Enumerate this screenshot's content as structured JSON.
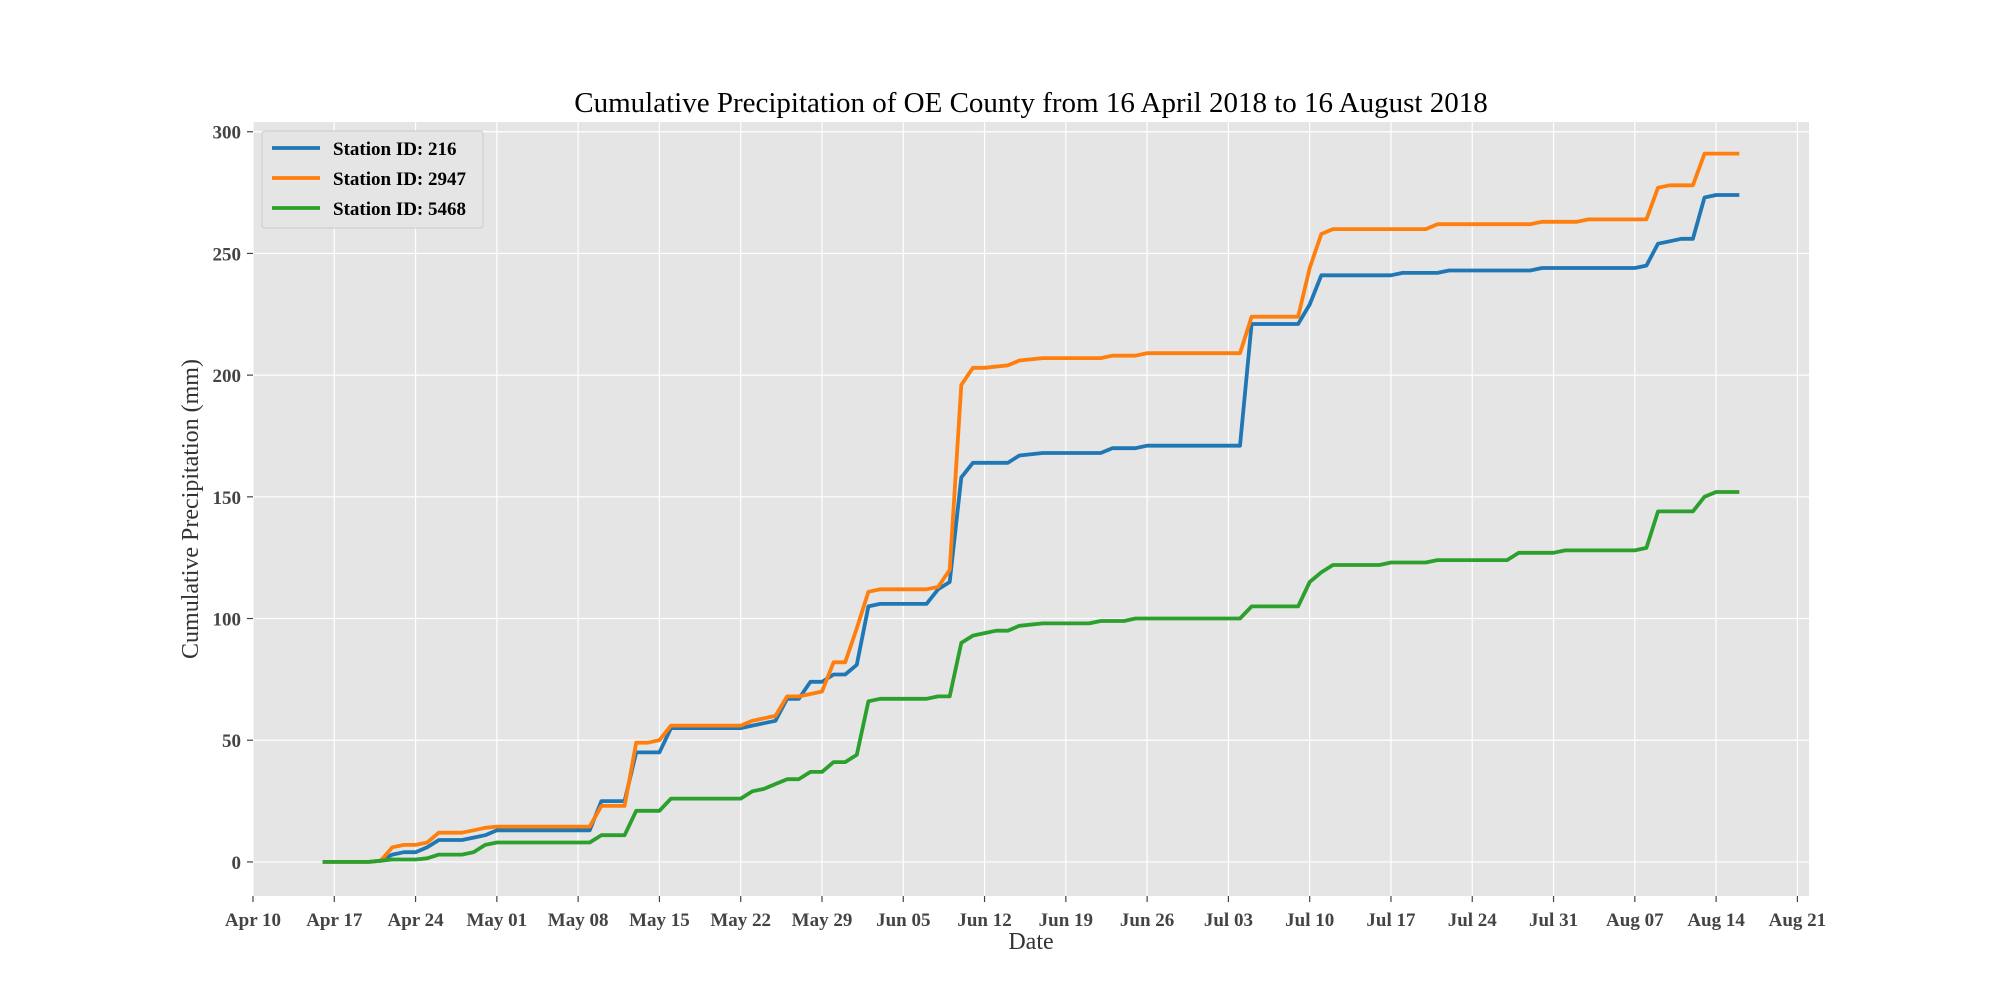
{
  "chart_data": {
    "type": "line",
    "title": "Cumulative Precipitation of OE County from 16 April 2018 to 16 August 2018",
    "xlabel": "Date",
    "ylabel": "Cumulative Precipitation (mm)",
    "xlim": [
      "2018-04-10",
      "2018-08-22"
    ],
    "ylim": [
      -14,
      304
    ],
    "x_ticks": [
      {
        "date": "2018-04-10",
        "label": "Apr 10"
      },
      {
        "date": "2018-04-17",
        "label": "Apr 17"
      },
      {
        "date": "2018-04-24",
        "label": "Apr 24"
      },
      {
        "date": "2018-05-01",
        "label": "May 01"
      },
      {
        "date": "2018-05-08",
        "label": "May 08"
      },
      {
        "date": "2018-05-15",
        "label": "May 15"
      },
      {
        "date": "2018-05-22",
        "label": "May 22"
      },
      {
        "date": "2018-05-29",
        "label": "May 29"
      },
      {
        "date": "2018-06-05",
        "label": "Jun 05"
      },
      {
        "date": "2018-06-12",
        "label": "Jun 12"
      },
      {
        "date": "2018-06-19",
        "label": "Jun 19"
      },
      {
        "date": "2018-06-26",
        "label": "Jun 26"
      },
      {
        "date": "2018-07-03",
        "label": "Jul 03"
      },
      {
        "date": "2018-07-10",
        "label": "Jul 10"
      },
      {
        "date": "2018-07-17",
        "label": "Jul 17"
      },
      {
        "date": "2018-07-24",
        "label": "Jul 24"
      },
      {
        "date": "2018-07-31",
        "label": "Jul 31"
      },
      {
        "date": "2018-08-07",
        "label": "Aug 07"
      },
      {
        "date": "2018-08-14",
        "label": "Aug 14"
      },
      {
        "date": "2018-08-21",
        "label": "Aug 21"
      }
    ],
    "y_ticks": [
      0,
      50,
      100,
      150,
      200,
      250,
      300
    ],
    "grid": true,
    "legend_position": "top-left",
    "series": [
      {
        "name": "Station ID: 216",
        "color": "#1f77b4",
        "points": [
          [
            "2018-04-16",
            0
          ],
          [
            "2018-04-20",
            0
          ],
          [
            "2018-04-21",
            0.5
          ],
          [
            "2018-04-22",
            3
          ],
          [
            "2018-04-23",
            4
          ],
          [
            "2018-04-24",
            4
          ],
          [
            "2018-04-25",
            6
          ],
          [
            "2018-04-26",
            9
          ],
          [
            "2018-04-27",
            9
          ],
          [
            "2018-04-28",
            9
          ],
          [
            "2018-04-29",
            10
          ],
          [
            "2018-04-30",
            11
          ],
          [
            "2018-05-01",
            13
          ],
          [
            "2018-05-09",
            13
          ],
          [
            "2018-05-10",
            25
          ],
          [
            "2018-05-12",
            25
          ],
          [
            "2018-05-13",
            45
          ],
          [
            "2018-05-14",
            45
          ],
          [
            "2018-05-15",
            45
          ],
          [
            "2018-05-16",
            55
          ],
          [
            "2018-05-22",
            55
          ],
          [
            "2018-05-23",
            56
          ],
          [
            "2018-05-24",
            57
          ],
          [
            "2018-05-25",
            58
          ],
          [
            "2018-05-26",
            67
          ],
          [
            "2018-05-27",
            67
          ],
          [
            "2018-05-28",
            74
          ],
          [
            "2018-05-29",
            74
          ],
          [
            "2018-05-30",
            77
          ],
          [
            "2018-05-31",
            77
          ],
          [
            "2018-06-01",
            81
          ],
          [
            "2018-06-02",
            105
          ],
          [
            "2018-06-03",
            106
          ],
          [
            "2018-06-07",
            106
          ],
          [
            "2018-06-08",
            112
          ],
          [
            "2018-06-09",
            115
          ],
          [
            "2018-06-10",
            158
          ],
          [
            "2018-06-11",
            164
          ],
          [
            "2018-06-12",
            164
          ],
          [
            "2018-06-14",
            164
          ],
          [
            "2018-06-15",
            167
          ],
          [
            "2018-06-17",
            168
          ],
          [
            "2018-06-22",
            168
          ],
          [
            "2018-06-23",
            170
          ],
          [
            "2018-06-25",
            170
          ],
          [
            "2018-06-26",
            171
          ],
          [
            "2018-07-04",
            171
          ],
          [
            "2018-07-05",
            221
          ],
          [
            "2018-07-09",
            221
          ],
          [
            "2018-07-10",
            229
          ],
          [
            "2018-07-11",
            241
          ],
          [
            "2018-07-12",
            241
          ],
          [
            "2018-07-17",
            241
          ],
          [
            "2018-07-18",
            242
          ],
          [
            "2018-07-21",
            242
          ],
          [
            "2018-07-22",
            243
          ],
          [
            "2018-07-29",
            243
          ],
          [
            "2018-07-30",
            244
          ],
          [
            "2018-08-07",
            244
          ],
          [
            "2018-08-08",
            245
          ],
          [
            "2018-08-09",
            254
          ],
          [
            "2018-08-10",
            255
          ],
          [
            "2018-08-11",
            256
          ],
          [
            "2018-08-12",
            256
          ],
          [
            "2018-08-13",
            273
          ],
          [
            "2018-08-14",
            274
          ],
          [
            "2018-08-16",
            274
          ]
        ]
      },
      {
        "name": "Station ID: 2947",
        "color": "#ff7f0e",
        "points": [
          [
            "2018-04-16",
            0
          ],
          [
            "2018-04-20",
            0
          ],
          [
            "2018-04-21",
            0.5
          ],
          [
            "2018-04-22",
            6
          ],
          [
            "2018-04-23",
            7
          ],
          [
            "2018-04-24",
            7
          ],
          [
            "2018-04-25",
            8
          ],
          [
            "2018-04-26",
            12
          ],
          [
            "2018-04-27",
            12
          ],
          [
            "2018-04-28",
            12
          ],
          [
            "2018-04-29",
            13
          ],
          [
            "2018-04-30",
            14
          ],
          [
            "2018-05-01",
            14.5
          ],
          [
            "2018-05-09",
            14.5
          ],
          [
            "2018-05-10",
            23
          ],
          [
            "2018-05-12",
            23
          ],
          [
            "2018-05-13",
            49
          ],
          [
            "2018-05-14",
            49
          ],
          [
            "2018-05-15",
            50
          ],
          [
            "2018-05-16",
            56
          ],
          [
            "2018-05-22",
            56
          ],
          [
            "2018-05-23",
            58
          ],
          [
            "2018-05-24",
            59
          ],
          [
            "2018-05-25",
            60
          ],
          [
            "2018-05-26",
            68
          ],
          [
            "2018-05-27",
            68
          ],
          [
            "2018-05-28",
            69
          ],
          [
            "2018-05-29",
            70
          ],
          [
            "2018-05-30",
            82
          ],
          [
            "2018-05-31",
            82
          ],
          [
            "2018-06-01",
            96
          ],
          [
            "2018-06-02",
            111
          ],
          [
            "2018-06-03",
            112
          ],
          [
            "2018-06-07",
            112
          ],
          [
            "2018-06-08",
            113
          ],
          [
            "2018-06-09",
            120
          ],
          [
            "2018-06-10",
            196
          ],
          [
            "2018-06-11",
            203
          ],
          [
            "2018-06-12",
            203
          ],
          [
            "2018-06-14",
            204
          ],
          [
            "2018-06-15",
            206
          ],
          [
            "2018-06-17",
            207
          ],
          [
            "2018-06-22",
            207
          ],
          [
            "2018-06-23",
            208
          ],
          [
            "2018-06-25",
            208
          ],
          [
            "2018-06-26",
            209
          ],
          [
            "2018-07-04",
            209
          ],
          [
            "2018-07-05",
            224
          ],
          [
            "2018-07-09",
            224
          ],
          [
            "2018-07-10",
            244
          ],
          [
            "2018-07-11",
            258
          ],
          [
            "2018-07-12",
            260
          ],
          [
            "2018-07-20",
            260
          ],
          [
            "2018-07-21",
            262
          ],
          [
            "2018-07-29",
            262
          ],
          [
            "2018-07-30",
            263
          ],
          [
            "2018-08-02",
            263
          ],
          [
            "2018-08-03",
            264
          ],
          [
            "2018-08-08",
            264
          ],
          [
            "2018-08-09",
            277
          ],
          [
            "2018-08-10",
            278
          ],
          [
            "2018-08-11",
            278
          ],
          [
            "2018-08-12",
            278
          ],
          [
            "2018-08-13",
            291
          ],
          [
            "2018-08-14",
            291
          ],
          [
            "2018-08-16",
            291
          ]
        ]
      },
      {
        "name": "Station ID: 5468",
        "color": "#2ca02c",
        "points": [
          [
            "2018-04-16",
            0
          ],
          [
            "2018-04-20",
            0
          ],
          [
            "2018-04-22",
            1
          ],
          [
            "2018-04-24",
            1
          ],
          [
            "2018-04-25",
            1.5
          ],
          [
            "2018-04-26",
            3
          ],
          [
            "2018-04-28",
            3
          ],
          [
            "2018-04-29",
            4
          ],
          [
            "2018-04-30",
            7
          ],
          [
            "2018-05-01",
            8
          ],
          [
            "2018-05-09",
            8
          ],
          [
            "2018-05-10",
            11
          ],
          [
            "2018-05-12",
            11
          ],
          [
            "2018-05-13",
            21
          ],
          [
            "2018-05-14",
            21
          ],
          [
            "2018-05-15",
            21
          ],
          [
            "2018-05-16",
            26
          ],
          [
            "2018-05-22",
            26
          ],
          [
            "2018-05-23",
            29
          ],
          [
            "2018-05-24",
            30
          ],
          [
            "2018-05-25",
            32
          ],
          [
            "2018-05-26",
            34
          ],
          [
            "2018-05-27",
            34
          ],
          [
            "2018-05-28",
            37
          ],
          [
            "2018-05-29",
            37
          ],
          [
            "2018-05-30",
            41
          ],
          [
            "2018-05-31",
            41
          ],
          [
            "2018-06-01",
            44
          ],
          [
            "2018-06-02",
            66
          ],
          [
            "2018-06-03",
            67
          ],
          [
            "2018-06-07",
            67
          ],
          [
            "2018-06-08",
            68
          ],
          [
            "2018-06-09",
            68
          ],
          [
            "2018-06-10",
            90
          ],
          [
            "2018-06-11",
            93
          ],
          [
            "2018-06-12",
            94
          ],
          [
            "2018-06-13",
            95
          ],
          [
            "2018-06-14",
            95
          ],
          [
            "2018-06-15",
            97
          ],
          [
            "2018-06-17",
            98
          ],
          [
            "2018-06-21",
            98
          ],
          [
            "2018-06-22",
            99
          ],
          [
            "2018-06-24",
            99
          ],
          [
            "2018-06-25",
            100
          ],
          [
            "2018-07-04",
            100
          ],
          [
            "2018-07-05",
            105
          ],
          [
            "2018-07-09",
            105
          ],
          [
            "2018-07-10",
            115
          ],
          [
            "2018-07-11",
            119
          ],
          [
            "2018-07-12",
            122
          ],
          [
            "2018-07-16",
            122
          ],
          [
            "2018-07-17",
            123
          ],
          [
            "2018-07-20",
            123
          ],
          [
            "2018-07-21",
            124
          ],
          [
            "2018-07-27",
            124
          ],
          [
            "2018-07-28",
            127
          ],
          [
            "2018-07-31",
            127
          ],
          [
            "2018-08-01",
            128
          ],
          [
            "2018-08-07",
            128
          ],
          [
            "2018-08-08",
            129
          ],
          [
            "2018-08-09",
            144
          ],
          [
            "2018-08-10",
            144
          ],
          [
            "2018-08-12",
            144
          ],
          [
            "2018-08-13",
            150
          ],
          [
            "2018-08-14",
            152
          ],
          [
            "2018-08-16",
            152
          ]
        ]
      }
    ]
  }
}
